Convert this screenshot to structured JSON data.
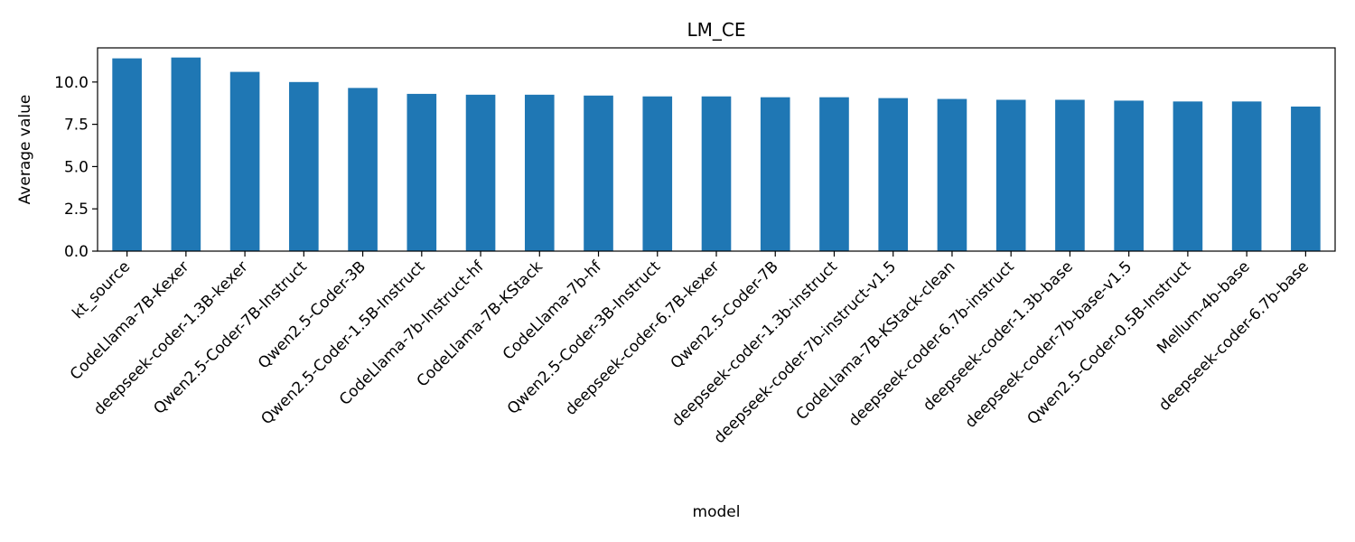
{
  "chart_data": {
    "type": "bar",
    "title": "LM_CE",
    "xlabel": "model",
    "ylabel": "Average value",
    "categories": [
      "kt_source",
      "CodeLlama-7B-Kexer",
      "deepseek-coder-1.3B-kexer",
      "Qwen2.5-Coder-7B-Instruct",
      "Qwen2.5-Coder-3B",
      "Qwen2.5-Coder-1.5B-Instruct",
      "CodeLlama-7b-Instruct-hf",
      "CodeLlama-7B-KStack",
      "CodeLlama-7b-hf",
      "Qwen2.5-Coder-3B-Instruct",
      "deepseek-coder-6.7B-kexer",
      "Qwen2.5-Coder-7B",
      "deepseek-coder-1.3b-instruct",
      "deepseek-coder-7b-instruct-v1.5",
      "CodeLlama-7B-KStack-clean",
      "deepseek-coder-6.7b-instruct",
      "deepseek-coder-1.3b-base",
      "deepseek-coder-7b-base-v1.5",
      "Qwen2.5-Coder-0.5B-Instruct",
      "Mellum-4b-base",
      "deepseek-coder-6.7b-base"
    ],
    "values": [
      11.4,
      11.45,
      10.6,
      10.0,
      9.65,
      9.3,
      9.25,
      9.25,
      9.2,
      9.15,
      9.15,
      9.1,
      9.1,
      9.05,
      9.0,
      8.95,
      8.95,
      8.9,
      8.85,
      8.85,
      8.55
    ],
    "yticks": [
      "0.0",
      "2.5",
      "5.0",
      "7.5",
      "10.0"
    ],
    "ytick_values": [
      0,
      2.5,
      5.0,
      7.5,
      10.0
    ],
    "ylim": [
      0,
      12.02
    ],
    "bar_color": "#1f77b4",
    "grid": false,
    "legend": false
  }
}
